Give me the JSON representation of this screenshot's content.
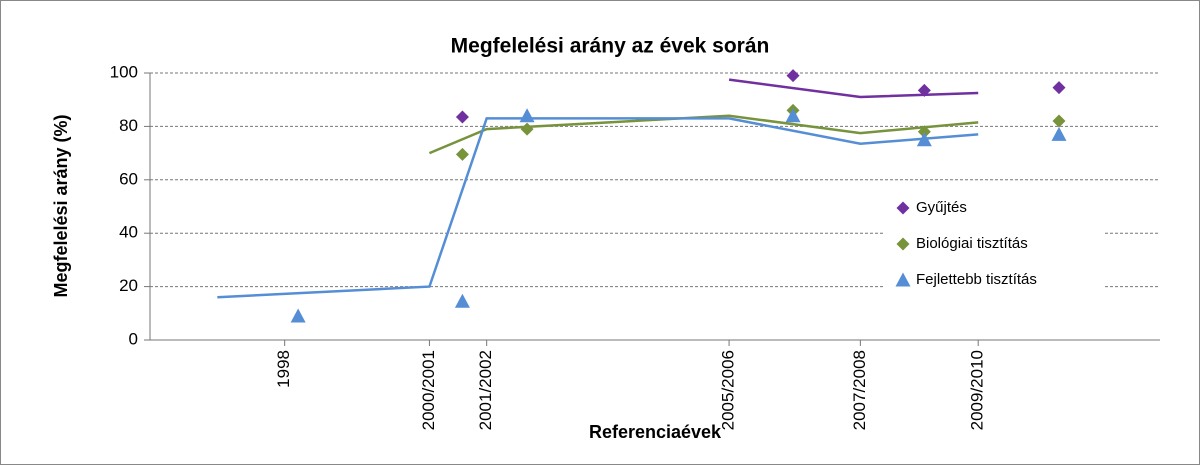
{
  "chart_data": {
    "type": "scatter",
    "title": "Megfelelési arány az évek során",
    "x_label": "Referenciaévek",
    "y_label": "Megfelelési arány (%)",
    "xlim": [
      0,
      15
    ],
    "xticks": [
      {
        "value": 2,
        "label": "1998"
      },
      {
        "value": 4.15,
        "label": "2000/2001"
      },
      {
        "value": 5,
        "label": "2001/2002"
      },
      {
        "value": 8.6,
        "label": "2005/2006"
      },
      {
        "value": 10.55,
        "label": "2007/2008"
      },
      {
        "value": 12.3,
        "label": "2009/2010"
      }
    ],
    "ylim": [
      0,
      100
    ],
    "yticks": [
      0,
      20,
      40,
      60,
      80,
      100
    ],
    "grid": true,
    "legend": "right",
    "series": [
      {
        "name": "Gyűjtés",
        "color": "#7030a0",
        "marker": "diamond",
        "x": [
          4.64,
          9.55,
          11.5,
          13.5
        ],
        "values": [
          83.5,
          99,
          93.5,
          94.5
        ]
      },
      {
        "name": "Biológiai tisztítás",
        "color": "#77933c",
        "marker": "diamond",
        "x": [
          4.64,
          5.6,
          9.55,
          11.5,
          13.5
        ],
        "values": [
          69.5,
          79,
          86,
          78,
          82
        ]
      },
      {
        "name": "Fejlettebb tisztítás",
        "color": "#558ed5",
        "marker": "triangle",
        "x": [
          2.2,
          4.64,
          5.6,
          9.55,
          11.5,
          13.5
        ],
        "values": [
          9,
          14.5,
          84,
          84,
          75,
          77
        ]
      },
      {
        "color": "#7030a0",
        "marker": "line",
        "x": [
          8.6,
          10.55,
          12.3
        ],
        "values": [
          97.5,
          91,
          92.5
        ]
      },
      {
        "color": "#77933c",
        "marker": "line",
        "x": [
          4.15,
          5,
          8.6,
          10.55,
          12.3
        ],
        "values": [
          70,
          79,
          84,
          77.5,
          81.5
        ]
      },
      {
        "color": "#558ed5",
        "marker": "line",
        "x": [
          1,
          4.15,
          5,
          8.6,
          10.55,
          12.3
        ],
        "values": [
          16,
          20,
          83,
          83,
          73.5,
          77
        ]
      }
    ]
  }
}
